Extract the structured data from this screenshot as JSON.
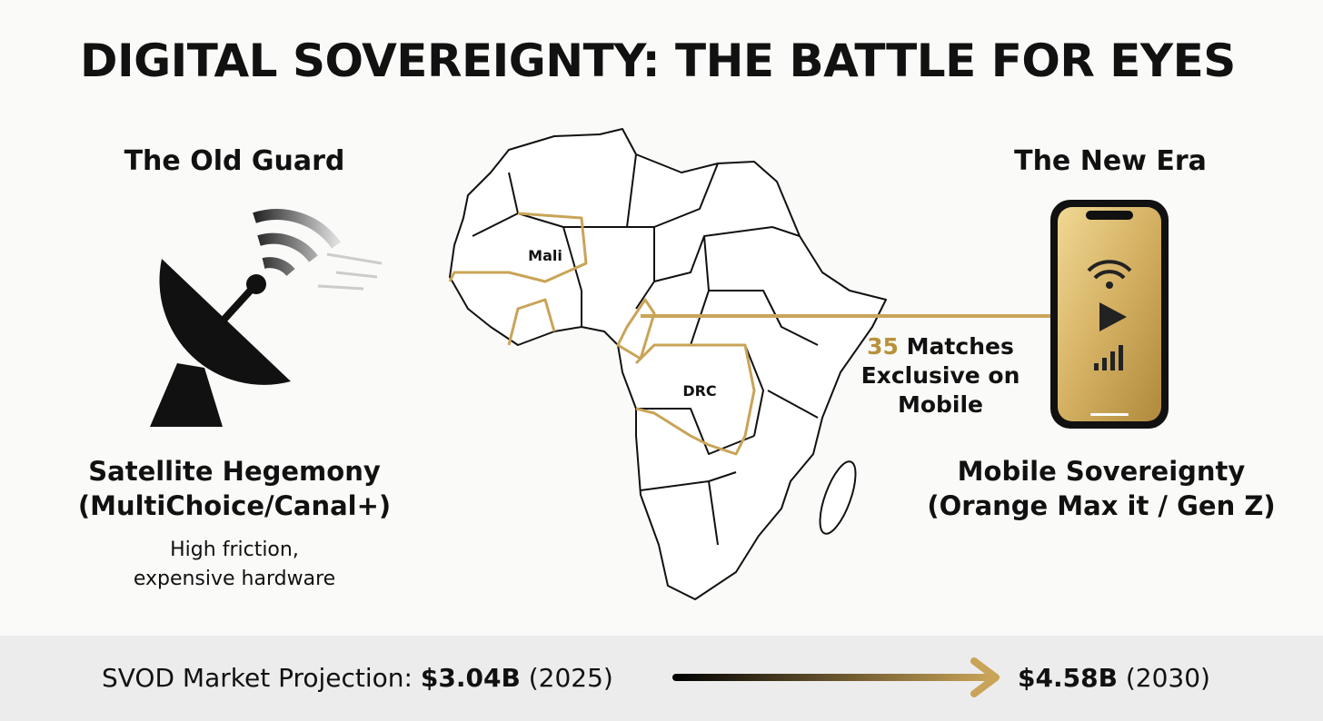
{
  "title": "DIGITAL SOVEREIGNTY: THE BATTLE FOR EYES",
  "left": {
    "heading": "The Old Guard",
    "label": [
      "Satellite Hegemony",
      "(MultiChoice/Canal+)"
    ],
    "note": [
      "High friction,",
      "expensive hardware"
    ]
  },
  "right": {
    "heading": "The New Era",
    "label": [
      "Mobile Sovereignty",
      "(Orange Max it / Gen Z)"
    ]
  },
  "map": {
    "labels": [
      "Mali",
      "DRC"
    ]
  },
  "callout": {
    "number": 35,
    "text": [
      "Matches",
      "Exclusive on",
      "Mobile"
    ]
  },
  "footer": {
    "label": "SVOD Market Projection:",
    "start_value": "$3.04B",
    "start_year": "(2025)",
    "end_value": "$4.58B",
    "end_year": "(2030)"
  }
}
